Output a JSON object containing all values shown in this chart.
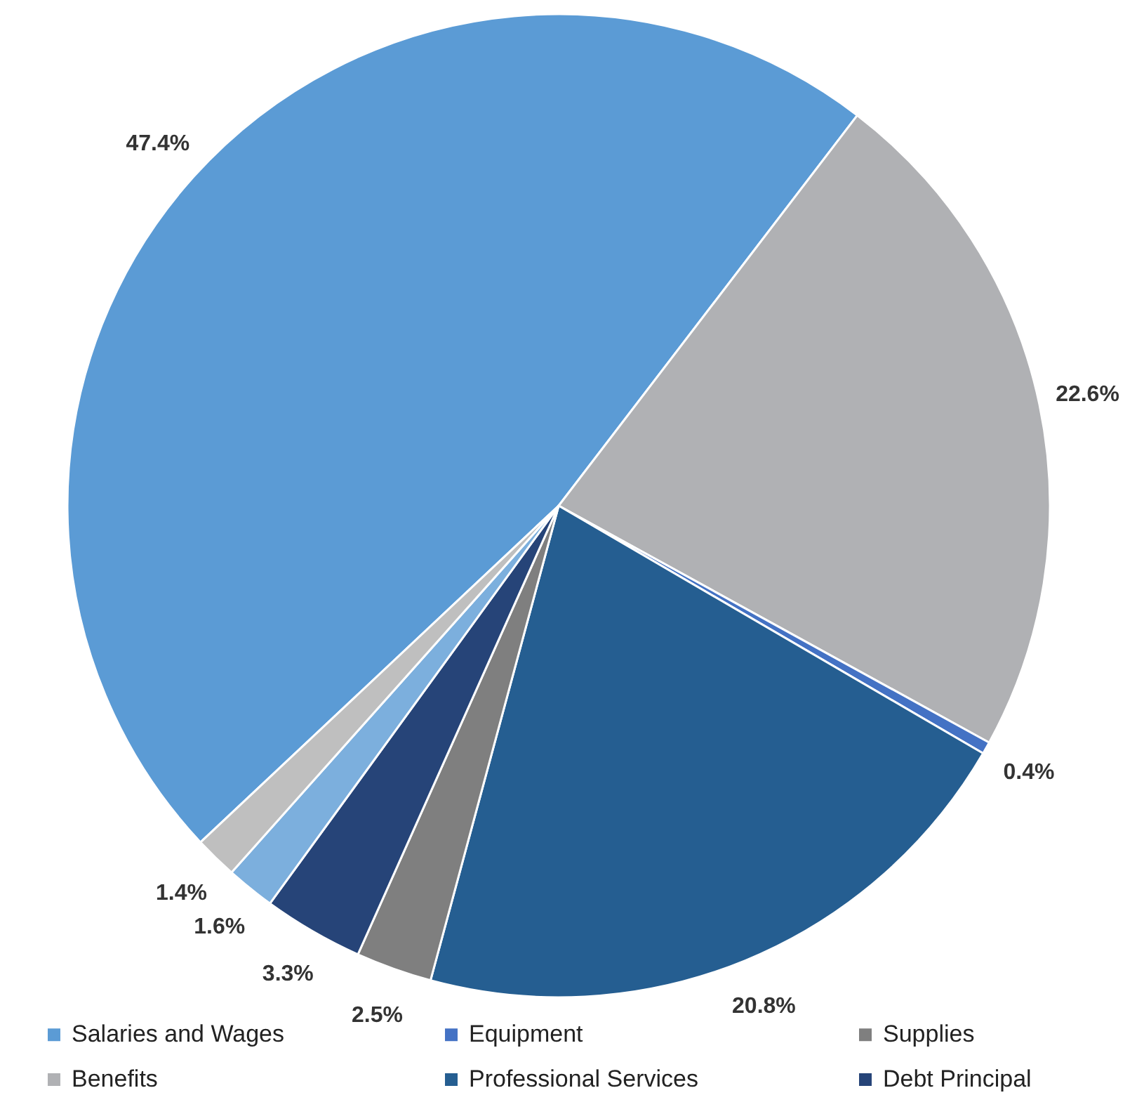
{
  "chart_data": {
    "type": "pie",
    "categories": [
      "Salaries and Wages",
      "Benefits",
      "Equipment",
      "Professional Services",
      "Supplies",
      "Debt Principal",
      null,
      null
    ],
    "values": [
      47.4,
      22.6,
      0.4,
      20.8,
      2.5,
      3.3,
      1.6,
      1.4
    ],
    "value_labels": [
      "47.4%",
      "22.6%",
      "0.4%",
      "20.8%",
      "2.5%",
      "3.3%",
      "1.6%",
      "1.4%"
    ],
    "colors": [
      "#5b9bd5",
      "#b0b1b4",
      "#4472c4",
      "#255e91",
      "#7f7f7f",
      "#264478",
      "#7cafdd",
      "#bfbfbf"
    ],
    "legend": "bottom"
  }
}
